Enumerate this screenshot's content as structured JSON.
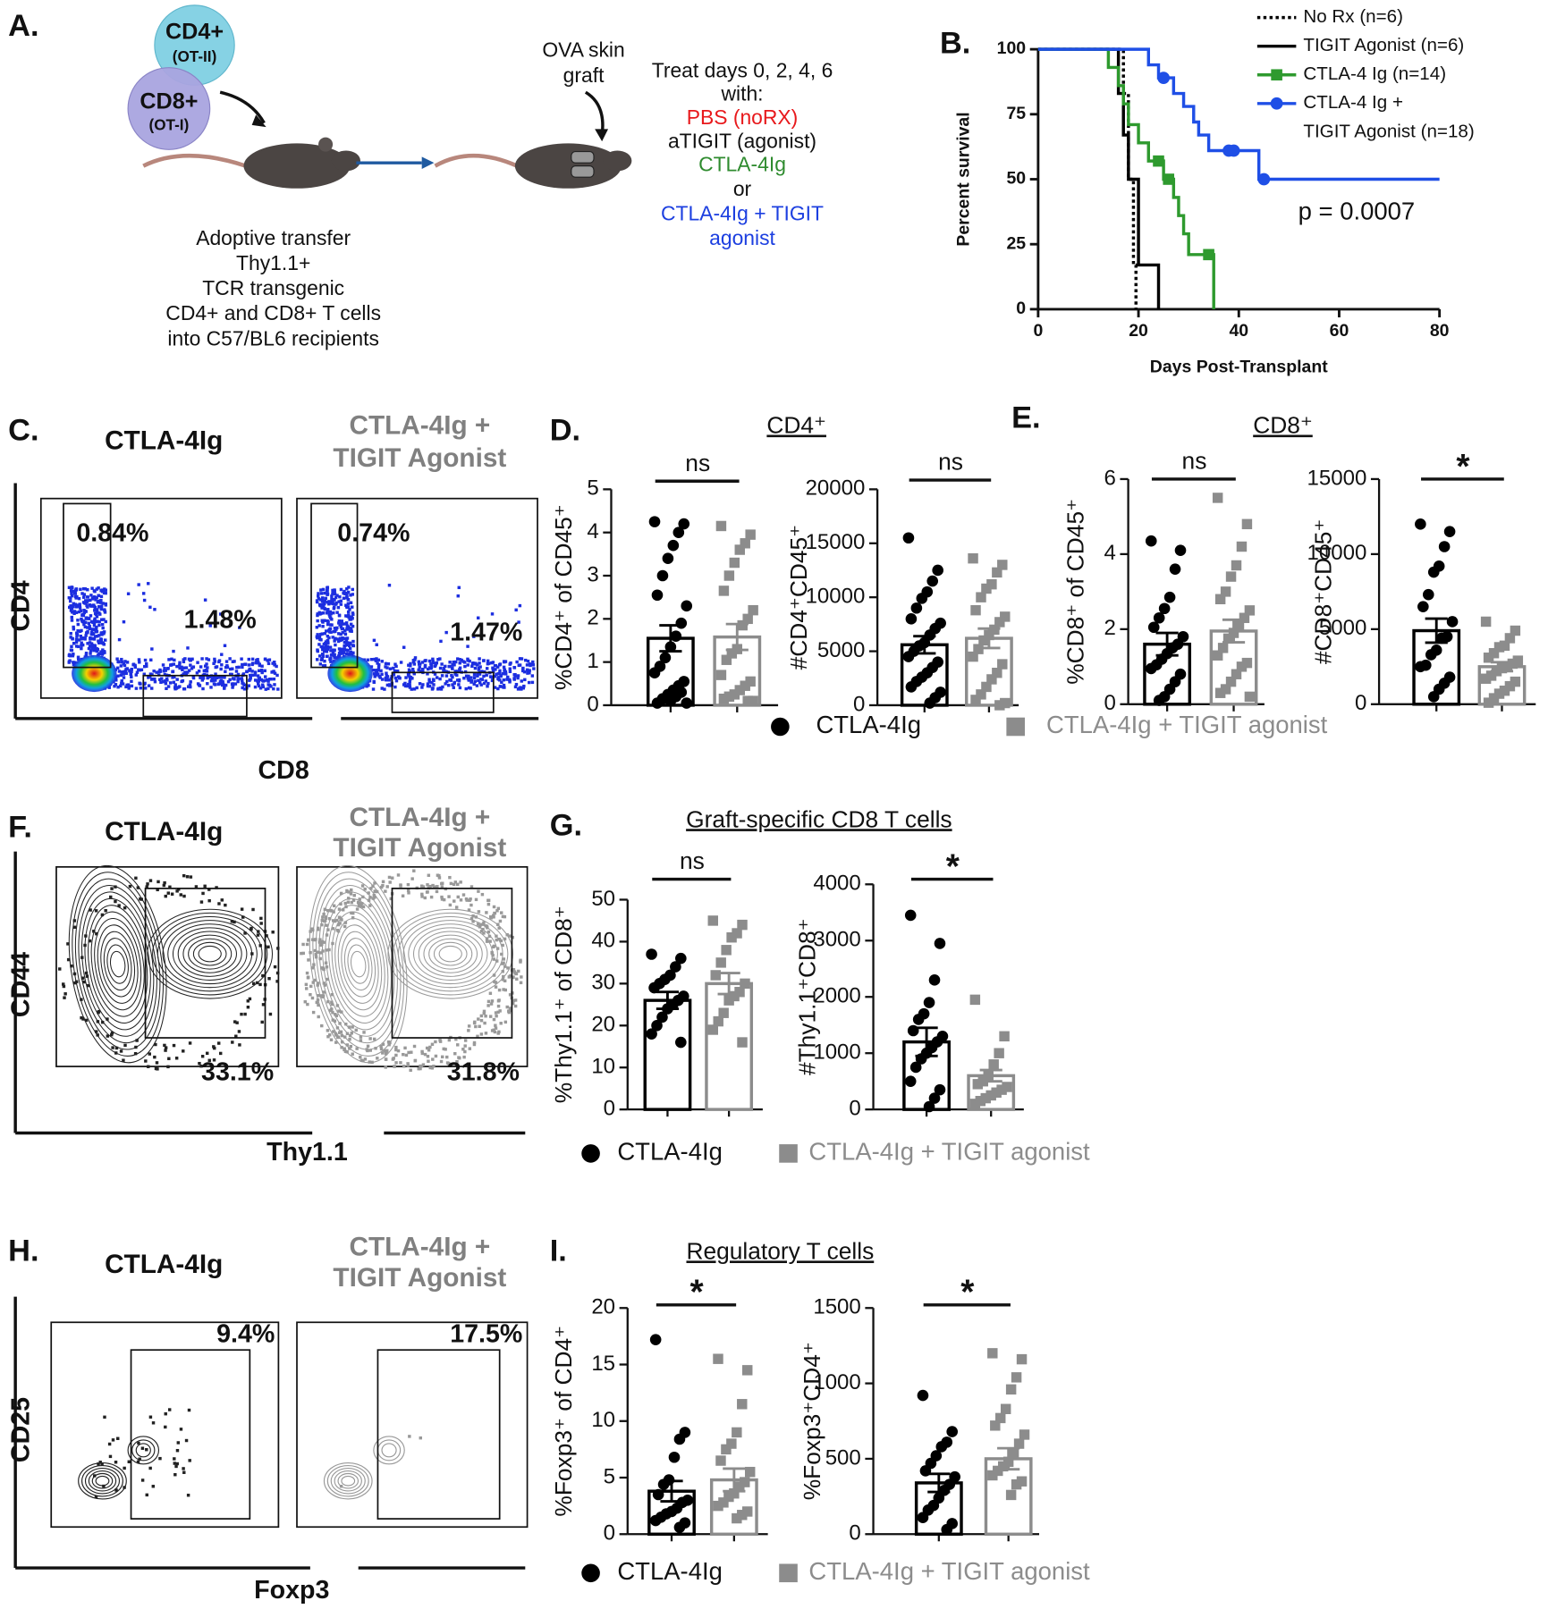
{
  "figure": {
    "labels": [
      "A.",
      "B.",
      "C.",
      "D.",
      "E.",
      "F.",
      "G.",
      "H.",
      "I."
    ],
    "schematic": {
      "cd4": [
        "CD4+",
        "(OT-II)"
      ],
      "cd8": [
        "CD8+",
        "(OT-I)"
      ],
      "graft": [
        "OVA skin",
        "graft"
      ],
      "treat": [
        "Treat days 0, 2, 4, 6",
        "with:"
      ],
      "options": [
        {
          "text": "PBS (noRX)",
          "color": "#e8191c"
        },
        {
          "text": "aTIGIT (agonist)",
          "color": "#111111"
        },
        {
          "text": "CTLA-4Ig",
          "color": "#2e8b2e"
        },
        {
          "text": "or",
          "color": "#111111"
        },
        {
          "text": "CTLA-4Ig + TIGIT",
          "color": "#1c3fe0"
        },
        {
          "text": "agonist",
          "color": "#1c3fe0"
        }
      ],
      "transfer": [
        "Adoptive transfer",
        "Thy1.1+",
        "TCR transgenic",
        "CD4+ and CD8+ T cells",
        "into C57/BL6 recipients"
      ]
    },
    "subtitles": [
      "CD4⁺",
      "CD8⁺",
      "Graft-specific CD8 T cells",
      "Regulatory T cells"
    ],
    "legends": [
      [
        {
          "text": "CTLA-4Ig",
          "color": "#000000",
          "marker": "circle"
        },
        {
          "text": "CTLA-4Ig + TIGIT agonist",
          "color": "#8c8c8c",
          "marker": "square"
        }
      ],
      [
        {
          "text": "CTLA-4Ig",
          "color": "#000000",
          "marker": "circle"
        },
        {
          "text": "CTLA-4Ig + TIGIT agonist",
          "color": "#8c8c8c",
          "marker": "square"
        }
      ],
      [
        {
          "text": "CTLA-4Ig",
          "color": "#000000",
          "marker": "circle"
        },
        {
          "text": "CTLA-4Ig + TIGIT agonist",
          "color": "#8c8c8c",
          "marker": "square"
        }
      ]
    ],
    "flow": [
      {
        "titles": [
          [
            "CTLA-4Ig"
          ],
          [
            "CTLA-4Ig +",
            "TIGIT Agonist"
          ]
        ],
        "gates": [
          [
            "0.84%",
            "1.48%"
          ],
          [
            "0.74%",
            "1.47%"
          ]
        ],
        "yaxis": "CD4",
        "xaxis": "CD8",
        "style": "pseudocolor"
      },
      {
        "titles": [
          [
            "CTLA-4Ig"
          ],
          [
            "CTLA-4Ig +",
            "TIGIT Agonist"
          ]
        ],
        "gates": [
          [
            "33.1%"
          ],
          [
            "31.8%"
          ]
        ],
        "yaxis": "CD44",
        "xaxis": "Thy1.1",
        "style": "contour"
      },
      {
        "titles": [
          [
            "CTLA-4Ig"
          ],
          [
            "CTLA-4Ig +",
            "TIGIT Agonist"
          ]
        ],
        "gates": [
          [
            "9.4%"
          ],
          [
            "17.5%"
          ]
        ],
        "yaxis": "CD25",
        "xaxis": "Foxp3",
        "style": "small-contour"
      }
    ]
  },
  "chart_data": [
    {
      "type": "line",
      "step": true,
      "xlabel": "Days Post-Transplant",
      "ylabel": "Percent survival",
      "annotation": "p = 0.0007",
      "xlim": [
        0,
        80
      ],
      "xticks": [
        0,
        20,
        40,
        60,
        80
      ],
      "ylim": [
        0,
        100
      ],
      "yticks": [
        0,
        25,
        50,
        75,
        100
      ],
      "series": [
        {
          "name": [
            "No Rx (n=6)"
          ],
          "color": "#000000",
          "dash": "3,3",
          "marker": "none",
          "x": [
            0,
            17,
            18,
            19,
            19.5
          ],
          "values": [
            100,
            83,
            50,
            17,
            0
          ],
          "censor_x": [],
          "censor_values": []
        },
        {
          "name": [
            "TIGIT Agonist (n=6)"
          ],
          "color": "#000000",
          "dash": "none",
          "marker": "none",
          "x": [
            0,
            16,
            17,
            18,
            20,
            24
          ],
          "values": [
            100,
            83,
            67,
            50,
            17,
            0
          ],
          "censor_x": [],
          "censor_values": []
        },
        {
          "name": [
            "CTLA-4 Ig (n=14)"
          ],
          "color": "#2e9a2e",
          "dash": "none",
          "marker": "square",
          "x": [
            0,
            14,
            16,
            17,
            18,
            20,
            22,
            25,
            27,
            28,
            29,
            30,
            35
          ],
          "values": [
            100,
            93,
            86,
            79,
            71,
            64,
            57,
            50,
            43,
            36,
            29,
            21,
            0
          ],
          "censor_x": [
            24,
            26,
            34
          ],
          "censor_values": [
            57,
            50,
            21
          ]
        },
        {
          "name": [
            "CTLA-4 Ig +",
            "TIGIT Agonist (n=18)"
          ],
          "color": "#1f4fe6",
          "dash": "none",
          "marker": "circle",
          "x": [
            0,
            22,
            24,
            27,
            29,
            31,
            32,
            34,
            44,
            80
          ],
          "values": [
            100,
            94,
            89,
            83,
            78,
            72,
            67,
            61,
            50,
            50
          ],
          "censor_x": [
            25,
            38,
            39,
            45
          ],
          "censor_values": [
            89,
            61,
            61,
            50
          ]
        }
      ]
    },
    {
      "type": "bar",
      "ylabel": "%CD4⁺ of CD45⁺",
      "ylim": [
        0,
        5
      ],
      "yticks": [
        0,
        1,
        2,
        3,
        4,
        5
      ],
      "significance": "ns",
      "series": [
        {
          "color": "#000000",
          "marker": "circle",
          "mean": 1.55,
          "sem": 0.3,
          "points": [
            4.25,
            4.2,
            4.0,
            3.7,
            3.4,
            3.0,
            2.55,
            2.3,
            1.9,
            1.6,
            1.35,
            1.1,
            0.9,
            0.75,
            0.55,
            0.45,
            0.35,
            0.25,
            0.15,
            0.05,
            0.05,
            0.3,
            0.2,
            0.1
          ]
        },
        {
          "color": "#8c8c8c",
          "marker": "square",
          "mean": 1.58,
          "sem": 0.3,
          "points": [
            4.15,
            3.95,
            3.75,
            3.6,
            3.3,
            3.0,
            2.65,
            2.2,
            2.0,
            1.85,
            1.3,
            1.2,
            1.05,
            0.7,
            0.55,
            0.45,
            0.35,
            0.25,
            0.2,
            0.15,
            0.1,
            0.1
          ]
        }
      ]
    },
    {
      "type": "bar",
      "ylabel": "#CD4⁺CD45⁺",
      "ylim": [
        0,
        20000
      ],
      "yticks": [
        0,
        5000,
        10000,
        15000,
        20000
      ],
      "significance": "ns",
      "series": [
        {
          "color": "#000000",
          "marker": "circle",
          "mean": 5600,
          "sem": 800,
          "points": [
            15500,
            12500,
            11500,
            10500,
            9900,
            9000,
            8000,
            7600,
            7100,
            6500,
            5800,
            5500,
            5000,
            4500,
            4000,
            3500,
            3000,
            2600,
            2200,
            1700,
            1200,
            700,
            200
          ]
        },
        {
          "color": "#8c8c8c",
          "marker": "square",
          "mean": 6200,
          "sem": 900,
          "points": [
            13600,
            13000,
            12300,
            11200,
            10800,
            10000,
            8800,
            8200,
            7700,
            7000,
            6500,
            6000,
            5200,
            4500,
            3800,
            3000,
            2400,
            1700,
            1000,
            500,
            200,
            0
          ]
        }
      ]
    },
    {
      "type": "bar",
      "ylabel": "%CD8⁺ of CD45⁺",
      "ylim": [
        0,
        6
      ],
      "yticks": [
        0,
        2,
        4,
        6
      ],
      "significance": "ns",
      "series": [
        {
          "color": "#000000",
          "marker": "circle",
          "mean": 1.6,
          "sem": 0.3,
          "points": [
            4.35,
            4.1,
            3.6,
            2.85,
            2.55,
            2.3,
            2.05,
            1.8,
            1.6,
            1.5,
            1.35,
            1.2,
            1.05,
            0.95,
            0.8,
            0.6,
            0.4,
            0.2,
            0.1
          ]
        },
        {
          "color": "#8c8c8c",
          "marker": "square",
          "mean": 1.95,
          "sem": 0.3,
          "points": [
            5.5,
            4.8,
            4.2,
            3.7,
            3.4,
            3.0,
            2.8,
            2.5,
            2.3,
            2.1,
            1.9,
            1.75,
            1.5,
            1.3,
            1.1,
            1.0,
            0.8,
            0.6,
            0.4,
            0.3,
            0.2
          ]
        }
      ]
    },
    {
      "type": "bar",
      "ylabel": "#CD8⁺CD45⁺",
      "ylim": [
        0,
        15000
      ],
      "yticks": [
        0,
        5000,
        10000,
        15000
      ],
      "significance": "*",
      "series": [
        {
          "color": "#000000",
          "marker": "circle",
          "mean": 4900,
          "sem": 800,
          "points": [
            12000,
            11500,
            10500,
            9200,
            8800,
            7300,
            6500,
            5500,
            4500,
            4400,
            3600,
            3300,
            2600,
            2500,
            1800,
            1400,
            1000,
            500
          ]
        },
        {
          "color": "#8c8c8c",
          "marker": "square",
          "mean": 2500,
          "sem": 300,
          "points": [
            5500,
            4900,
            4400,
            3900,
            3800,
            3400,
            3100,
            2900,
            2700,
            2500,
            2400,
            2200,
            1900,
            1700,
            1500,
            1200,
            900,
            700,
            400,
            100
          ]
        }
      ]
    },
    {
      "type": "bar",
      "ylabel": "%Thy1.1⁺ of CD8⁺",
      "ylim": [
        0,
        50
      ],
      "yticks": [
        0,
        10,
        20,
        30,
        40,
        50
      ],
      "significance": "ns",
      "series": [
        {
          "color": "#000000",
          "marker": "circle",
          "mean": 26,
          "sem": 2,
          "points": [
            37,
            36,
            34,
            32,
            31,
            30,
            29,
            27,
            26,
            25,
            24,
            22,
            20,
            18,
            16
          ]
        },
        {
          "color": "#8c8c8c",
          "marker": "square",
          "mean": 30,
          "sem": 2.5,
          "points": [
            45,
            44,
            42,
            41,
            38,
            35,
            32,
            30,
            28,
            27,
            26,
            23,
            21,
            19,
            16
          ]
        }
      ]
    },
    {
      "type": "bar",
      "ylabel": "#Thy1.1⁺CD8⁺",
      "ylim": [
        0,
        4000
      ],
      "yticks": [
        0,
        1000,
        2000,
        3000,
        4000
      ],
      "significance": "*",
      "series": [
        {
          "color": "#000000",
          "marker": "circle",
          "mean": 1200,
          "sem": 250,
          "points": [
            3450,
            2950,
            2300,
            1900,
            1700,
            1600,
            1400,
            1300,
            1200,
            1100,
            1000,
            900,
            750,
            500,
            350,
            200,
            50
          ]
        },
        {
          "color": "#8c8c8c",
          "marker": "square",
          "mean": 600,
          "sem": 100,
          "points": [
            1950,
            1300,
            1000,
            800,
            600,
            500,
            450,
            400,
            350,
            300,
            250,
            200,
            150,
            100
          ]
        }
      ]
    },
    {
      "type": "bar",
      "ylabel": "%Foxp3⁺ of CD4⁺",
      "ylim": [
        0,
        20
      ],
      "yticks": [
        0,
        5,
        10,
        15,
        20
      ],
      "significance": "*",
      "series": [
        {
          "color": "#000000",
          "marker": "circle",
          "mean": 3.8,
          "sem": 0.9,
          "points": [
            17.2,
            9.0,
            8.4,
            6.8,
            4.8,
            4.4,
            3.5,
            3.0,
            2.8,
            2.3,
            2.0,
            1.8,
            1.5,
            1.2,
            1.0,
            0.6
          ]
        },
        {
          "color": "#8c8c8c",
          "marker": "square",
          "mean": 4.8,
          "sem": 1,
          "points": [
            15.5,
            14.5,
            11.5,
            9.0,
            8.0,
            7.5,
            6.5,
            5.5,
            4.6,
            4.2,
            3.6,
            3.3,
            2.8,
            2.5,
            2.0,
            1.7,
            1.4
          ]
        }
      ]
    },
    {
      "type": "bar",
      "ylabel": "%Foxp3⁺CD4⁺",
      "ylim": [
        0,
        1500
      ],
      "yticks": [
        0,
        500,
        1000,
        1500
      ],
      "significance": "*",
      "series": [
        {
          "color": "#000000",
          "marker": "circle",
          "mean": 340,
          "sem": 60,
          "points": [
            920,
            680,
            610,
            580,
            520,
            470,
            420,
            380,
            330,
            290,
            240,
            190,
            160,
            110,
            70,
            30
          ]
        },
        {
          "color": "#8c8c8c",
          "marker": "square",
          "mean": 500,
          "sem": 70,
          "points": [
            1200,
            1160,
            1040,
            960,
            830,
            770,
            720,
            660,
            600,
            540,
            480,
            450,
            420,
            390,
            350,
            330,
            260
          ]
        }
      ]
    }
  ]
}
